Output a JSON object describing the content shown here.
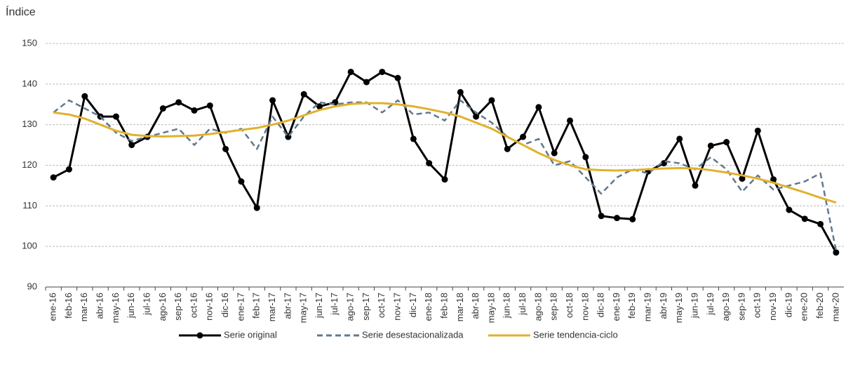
{
  "chart_data": {
    "type": "line",
    "y_label": "Índice",
    "categories": [
      "ene-16",
      "feb-16",
      "mar-16",
      "abr-16",
      "may-16",
      "jun-16",
      "jul-16",
      "ago-16",
      "sep-16",
      "oct-16",
      "nov-16",
      "dic-16",
      "ene-17",
      "feb-17",
      "mar-17",
      "abr-17",
      "may-17",
      "jun-17",
      "jul-17",
      "ago-17",
      "sep-17",
      "oct-17",
      "nov-17",
      "dic-17",
      "ene-18",
      "feb-18",
      "mar-18",
      "abr-18",
      "may-18",
      "jun-18",
      "jul-18",
      "ago-18",
      "sep-18",
      "oct-18",
      "nov-18",
      "dic-18",
      "ene-19",
      "feb-19",
      "mar-19",
      "abr-19",
      "may-19",
      "jun-19",
      "jul-19",
      "ago-19",
      "sep-19",
      "oct-19",
      "nov-19",
      "dic-19",
      "ene-20",
      "feb-20",
      "mar-20"
    ],
    "series": [
      {
        "name": "Serie original",
        "color": "#000000",
        "style": "solid-marker",
        "values": [
          117,
          119,
          137,
          132,
          132,
          125,
          127,
          134,
          135.5,
          133.5,
          134.7,
          124,
          116,
          109.5,
          136,
          127,
          137.5,
          134.5,
          135.5,
          143,
          140.5,
          143,
          141.5,
          126.5,
          120.5,
          116.5,
          138,
          132,
          136,
          124,
          127,
          134.3,
          123,
          131,
          122,
          107.5,
          107,
          106.7,
          118.5,
          120.5,
          126.5,
          115,
          124.8,
          125.7,
          116.7,
          128.5,
          116.5,
          109,
          106.8,
          105.5,
          98.5
        ]
      },
      {
        "name": "Serie desestacionalizada",
        "color": "#61788f",
        "style": "dashed",
        "values": [
          133,
          136,
          134,
          132,
          128,
          126,
          127,
          128,
          129,
          125,
          129,
          128,
          129,
          124,
          132,
          127,
          132,
          135.5,
          135,
          135.5,
          135.5,
          133,
          136,
          132.5,
          133,
          131,
          136,
          133,
          130.5,
          127,
          125,
          126.5,
          120,
          121,
          117,
          113,
          117,
          119,
          118,
          121,
          120.5,
          119,
          122,
          119,
          113.5,
          117.5,
          114,
          115,
          116,
          118,
          99
        ]
      },
      {
        "name": "Serie tendencia-ciclo",
        "color": "#e1b12c",
        "style": "solid",
        "values": [
          133,
          132.5,
          131.5,
          130,
          128.5,
          127.5,
          127.2,
          127.1,
          127.2,
          127.3,
          127.7,
          128.2,
          128.7,
          129.2,
          130,
          131,
          132.3,
          133.6,
          134.5,
          135.1,
          135.3,
          135.3,
          135,
          134.5,
          133.8,
          133,
          132,
          130.5,
          129,
          127,
          125,
          123,
          121.3,
          120,
          119,
          118.8,
          118.7,
          118.8,
          119,
          119.2,
          119.3,
          119.2,
          118.8,
          118.2,
          117.5,
          116.7,
          115.7,
          114.5,
          113.3,
          112,
          110.8
        ]
      }
    ],
    "ylim": [
      90,
      150
    ],
    "yticks": [
      90,
      100,
      110,
      120,
      130,
      140,
      150
    ],
    "grid": true,
    "legend": "bottom"
  }
}
